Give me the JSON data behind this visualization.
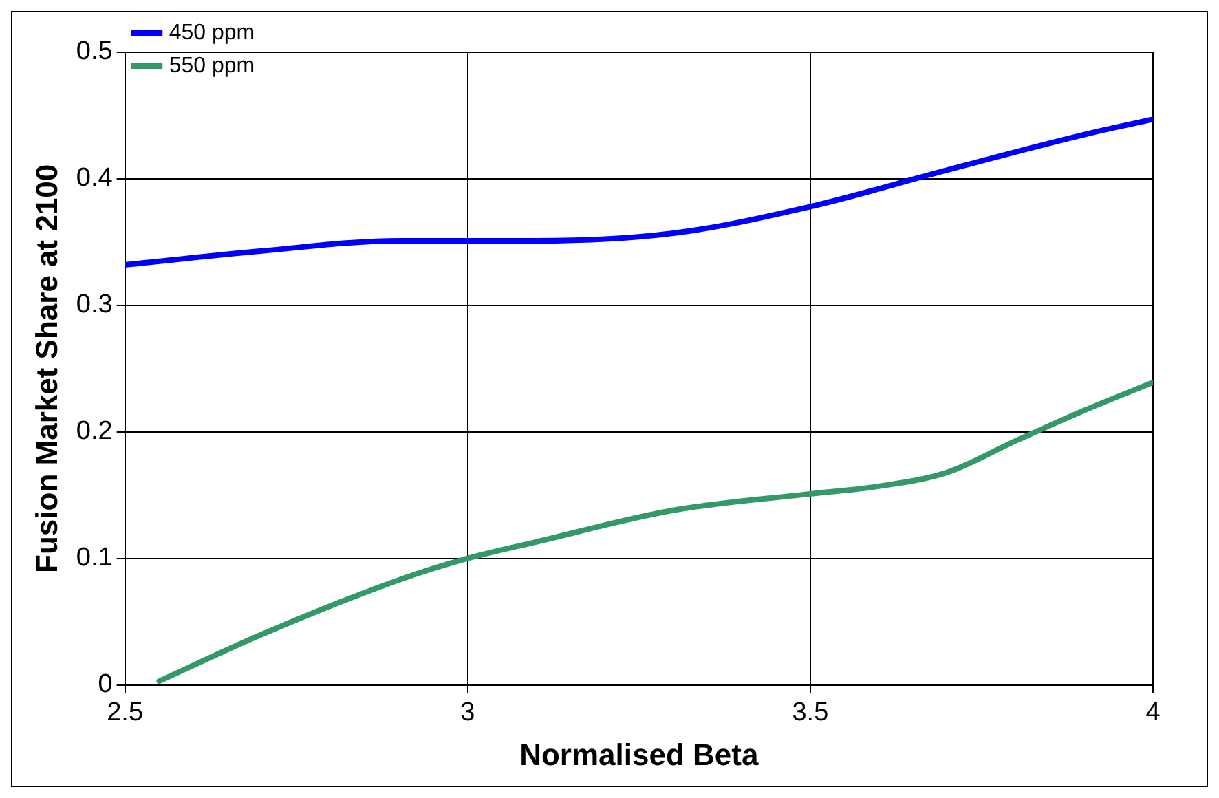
{
  "chart_data": {
    "type": "line",
    "xlabel": "Normalised Beta",
    "ylabel": "Fusion Market Share at 2100",
    "xlim": [
      2.5,
      4
    ],
    "xticks": [
      2.5,
      3,
      3.5,
      4
    ],
    "ylim": [
      0,
      0.5
    ],
    "yticks": [
      0,
      0.1,
      0.2,
      0.3,
      0.4,
      0.5
    ],
    "grid": true,
    "legend": "top left",
    "marker": "none",
    "line_style": "solid",
    "series": [
      {
        "name": "450 ppm",
        "color": "#0000ff",
        "x": [
          2.5,
          2.7,
          2.9,
          3.0,
          3.1,
          3.3,
          3.5,
          3.7,
          3.9,
          4.0
        ],
        "values": [
          0.332,
          0.343,
          0.351,
          0.351,
          0.351,
          0.357,
          0.378,
          0.407,
          0.435,
          0.447
        ]
      },
      {
        "name": "550 ppm",
        "color": "#339966",
        "x": [
          2.55,
          2.7,
          2.9,
          3.0,
          3.1,
          3.3,
          3.5,
          3.6,
          3.7,
          3.8,
          3.9,
          4.0
        ],
        "values": [
          0.003,
          0.04,
          0.083,
          0.1,
          0.113,
          0.138,
          0.151,
          0.157,
          0.168,
          0.193,
          0.217,
          0.239
        ]
      }
    ]
  }
}
